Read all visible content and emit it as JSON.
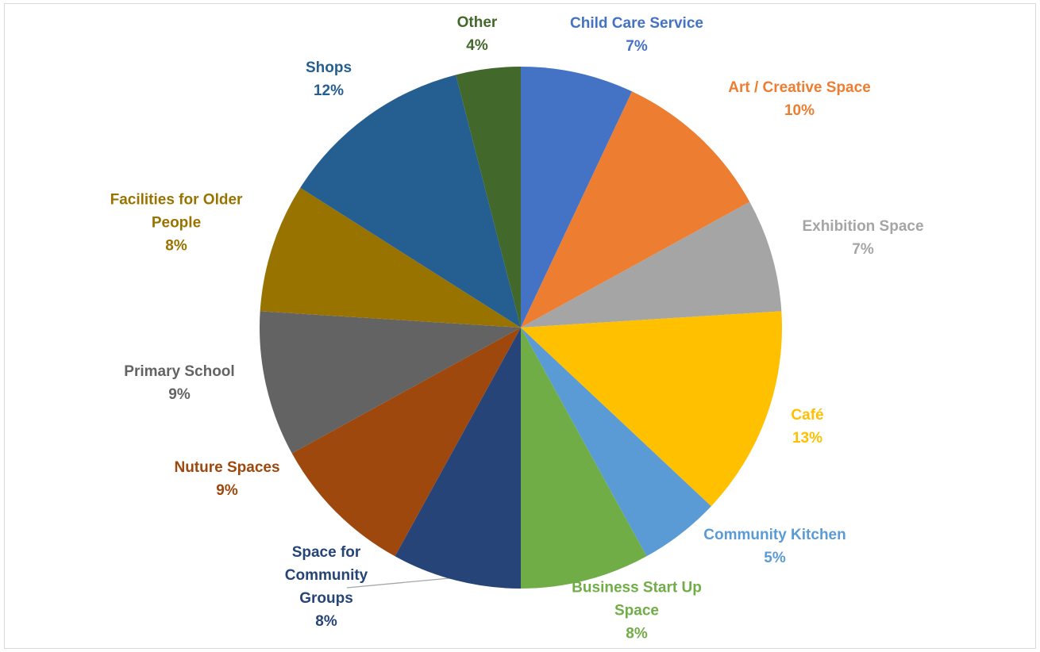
{
  "chart_data": {
    "type": "pie",
    "title": "",
    "start_angle_deg": 0,
    "direction": "clockwise",
    "slices": [
      {
        "label": "Child Care Service",
        "label_lines": [
          "Child Care Service"
        ],
        "value": 7,
        "value_label": "7%",
        "color": "#4472C4"
      },
      {
        "label": "Art / Creative Space",
        "label_lines": [
          "Art / Creative Space"
        ],
        "value": 10,
        "value_label": "10%",
        "color": "#ED7D31"
      },
      {
        "label": "Exhibition Space",
        "label_lines": [
          "Exhibition Space"
        ],
        "value": 7,
        "value_label": "7%",
        "color": "#A5A5A5"
      },
      {
        "label": "Café",
        "label_lines": [
          "Café"
        ],
        "value": 13,
        "value_label": "13%",
        "color": "#FFC000"
      },
      {
        "label": "Community Kitchen",
        "label_lines": [
          "Community Kitchen"
        ],
        "value": 5,
        "value_label": "5%",
        "color": "#5B9BD5"
      },
      {
        "label": "Business Start Up Space",
        "label_lines": [
          "Business Start Up",
          "Space"
        ],
        "value": 8,
        "value_label": "8%",
        "color": "#70AD47"
      },
      {
        "label": "Space for Community Groups",
        "label_lines": [
          "Space for",
          "Community",
          "Groups"
        ],
        "value": 8,
        "value_label": "8%",
        "color": "#264478"
      },
      {
        "label": "Nuture Spaces",
        "label_lines": [
          "Nuture Spaces"
        ],
        "value": 9,
        "value_label": "9%",
        "color": "#9E480E"
      },
      {
        "label": "Primary School",
        "label_lines": [
          "Primary School"
        ],
        "value": 9,
        "value_label": "9%",
        "color": "#636363"
      },
      {
        "label": "Facilities for Older People",
        "label_lines": [
          "Facilities for Older",
          "People"
        ],
        "value": 8,
        "value_label": "8%",
        "color": "#997300"
      },
      {
        "label": "Shops",
        "label_lines": [
          "Shops"
        ],
        "value": 12,
        "value_label": "12%",
        "color": "#255E91"
      },
      {
        "label": "Other",
        "label_lines": [
          "Other"
        ],
        "value": 4,
        "value_label": "4%",
        "color": "#43682B"
      }
    ]
  }
}
